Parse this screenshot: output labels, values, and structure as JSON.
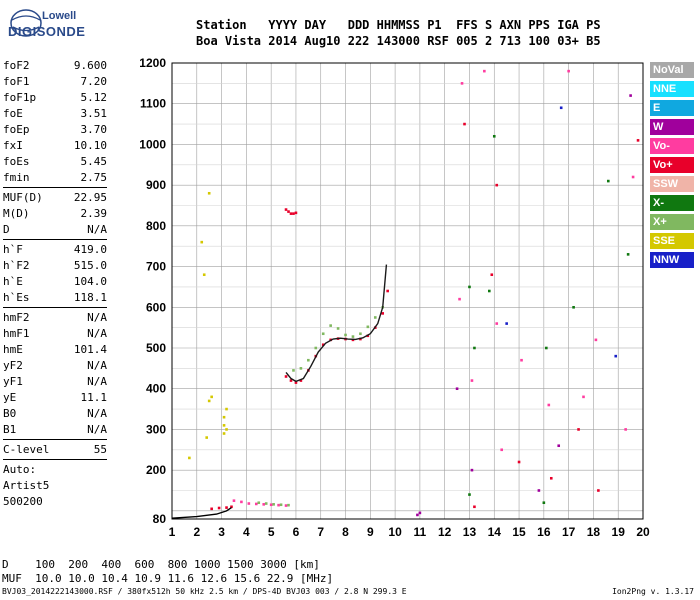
{
  "logo": {
    "line1": "Lowell",
    "line2": "DIGISONDE"
  },
  "header": {
    "row1": "Station   YYYY DAY   DDD HHMMSS P1  FFS S AXN PPS IGA PS",
    "row2": "Boa Vista 2014 Aug10 222 143000 RSF 005 2 713 100 03+ B5"
  },
  "params": {
    "group1": [
      {
        "name": "foF2",
        "value": "9.600"
      },
      {
        "name": "foF1",
        "value": "7.20"
      },
      {
        "name": "foF1p",
        "value": "5.12"
      },
      {
        "name": "foE",
        "value": "3.51"
      },
      {
        "name": "foEp",
        "value": "3.70"
      },
      {
        "name": "fxI",
        "value": "10.10"
      },
      {
        "name": "foEs",
        "value": "5.45"
      },
      {
        "name": "fmin",
        "value": "2.75"
      }
    ],
    "group2": [
      {
        "name": "MUF(D)",
        "value": "22.95"
      },
      {
        "name": "M(D)",
        "value": "2.39"
      },
      {
        "name": "D",
        "value": "N/A"
      }
    ],
    "group3": [
      {
        "name": "h`F",
        "value": "419.0"
      },
      {
        "name": "h`F2",
        "value": "515.0"
      },
      {
        "name": "h`E",
        "value": "104.0"
      },
      {
        "name": "h`Es",
        "value": "118.1"
      }
    ],
    "group4": [
      {
        "name": "hmF2",
        "value": "N/A"
      },
      {
        "name": "hmF1",
        "value": "N/A"
      },
      {
        "name": "hmE",
        "value": "101.4"
      },
      {
        "name": "yF2",
        "value": "N/A"
      },
      {
        "name": "yF1",
        "value": "N/A"
      },
      {
        "name": "yE",
        "value": "11.1"
      },
      {
        "name": "B0",
        "value": "N/A"
      },
      {
        "name": "B1",
        "value": "N/A"
      }
    ],
    "group5": [
      {
        "name": "C-level",
        "value": "55"
      }
    ],
    "auto_lines": [
      "Auto:",
      "Artist5",
      "500200"
    ]
  },
  "legend": [
    {
      "label": "NoVal",
      "color": "#a8a8a8"
    },
    {
      "label": "NNE",
      "color": "#18e0ff"
    },
    {
      "label": "E",
      "color": "#10a8e0"
    },
    {
      "label": "W",
      "color": "#a0009c"
    },
    {
      "label": "Vo-",
      "color": "#ff3ca0"
    },
    {
      "label": "Vo+",
      "color": "#e8002a"
    },
    {
      "label": "SSW",
      "color": "#f0b4a8"
    },
    {
      "label": "X-",
      "color": "#107810"
    },
    {
      "label": "X+",
      "color": "#80b860"
    },
    {
      "label": "SSE",
      "color": "#d4c800"
    },
    {
      "label": "NNW",
      "color": "#1820c8"
    }
  ],
  "footer": {
    "row1": "D    100  200  400  600  800 1000 1500 3000 [km]",
    "row2": "MUF  10.0 10.0 10.4 10.9 11.6 12.6 15.6 22.9 [MHz]",
    "row3": "BVJ03_2014222143000.RSF / 380fx512h 50 kHz 2.5 km / DPS-4D BVJ03 003 / 2.8 N 299.3 E",
    "version": "Ion2Png v. 1.3.17"
  },
  "chart_data": {
    "type": "scatter",
    "xlim": [
      1,
      20
    ],
    "ylim": [
      80,
      1200
    ],
    "x_ticks": [
      1,
      2,
      3,
      4,
      5,
      6,
      7,
      8,
      9,
      10,
      11,
      12,
      13,
      14,
      15,
      16,
      17,
      18,
      19,
      20
    ],
    "y_ticks": [
      80,
      200,
      300,
      400,
      500,
      600,
      700,
      800,
      900,
      1000,
      1100,
      1200
    ],
    "grid": true,
    "series": [
      {
        "color": "#e8002a",
        "points": [
          [
            5.6,
            430
          ],
          [
            5.8,
            420
          ],
          [
            6.0,
            415
          ],
          [
            6.2,
            420
          ],
          [
            6.5,
            445
          ],
          [
            6.8,
            480
          ],
          [
            7.1,
            508
          ],
          [
            7.4,
            520
          ],
          [
            7.7,
            523
          ],
          [
            8.0,
            522
          ],
          [
            8.3,
            520
          ],
          [
            8.6,
            522
          ],
          [
            8.9,
            530
          ],
          [
            9.2,
            550
          ],
          [
            9.5,
            585
          ],
          [
            9.7,
            640
          ]
        ]
      },
      {
        "color": "#80b860",
        "points": [
          [
            5.9,
            445
          ],
          [
            6.2,
            450
          ],
          [
            6.5,
            470
          ],
          [
            6.8,
            500
          ],
          [
            7.1,
            535
          ],
          [
            7.4,
            555
          ],
          [
            7.7,
            548
          ],
          [
            8.0,
            532
          ],
          [
            8.3,
            528
          ],
          [
            8.6,
            535
          ],
          [
            8.9,
            552
          ],
          [
            9.2,
            575
          ],
          [
            9.5,
            600
          ]
        ]
      },
      {
        "color": "#ff3ca0",
        "points": [
          [
            3.5,
            125
          ],
          [
            3.8,
            122
          ],
          [
            4.1,
            118
          ],
          [
            4.4,
            117
          ],
          [
            4.7,
            116
          ],
          [
            5.0,
            115
          ],
          [
            5.3,
            114
          ],
          [
            5.6,
            113
          ]
        ]
      },
      {
        "color": "#80b860",
        "points": [
          [
            4.5,
            120
          ],
          [
            4.8,
            118
          ],
          [
            5.1,
            116
          ],
          [
            5.4,
            115
          ],
          [
            5.7,
            114
          ]
        ]
      },
      {
        "color": "#e8002a",
        "points": [
          [
            2.6,
            105
          ],
          [
            2.9,
            107
          ],
          [
            3.2,
            108
          ],
          [
            3.4,
            110
          ]
        ]
      },
      {
        "color": "#e8002a",
        "points": [
          [
            5.6,
            840
          ],
          [
            5.7,
            835
          ],
          [
            5.8,
            830
          ],
          [
            5.9,
            830
          ],
          [
            6.0,
            832
          ]
        ]
      },
      {
        "color": "#d4c800",
        "points": [
          [
            3.1,
            290
          ],
          [
            3.1,
            310
          ],
          [
            3.1,
            330
          ],
          [
            3.2,
            350
          ],
          [
            3.2,
            300
          ],
          [
            2.5,
            370
          ],
          [
            2.4,
            280
          ],
          [
            2.2,
            760
          ],
          [
            2.3,
            680
          ],
          [
            2.6,
            380
          ],
          [
            2.5,
            880
          ],
          [
            1.7,
            230
          ]
        ]
      },
      {
        "color": "#107810",
        "points": [
          [
            13.0,
            650
          ],
          [
            13.2,
            500
          ],
          [
            13.8,
            640
          ],
          [
            14.0,
            1020
          ],
          [
            16.1,
            500
          ],
          [
            17.2,
            600
          ],
          [
            18.6,
            910
          ],
          [
            19.4,
            730
          ],
          [
            16.0,
            120
          ],
          [
            13.0,
            140
          ]
        ]
      },
      {
        "color": "#ff3ca0",
        "points": [
          [
            12.6,
            620
          ],
          [
            13.1,
            420
          ],
          [
            13.6,
            1180
          ],
          [
            14.1,
            560
          ],
          [
            15.1,
            470
          ],
          [
            16.2,
            360
          ],
          [
            17.0,
            1180
          ],
          [
            18.1,
            520
          ],
          [
            19.3,
            300
          ],
          [
            19.6,
            920
          ],
          [
            12.7,
            1150
          ],
          [
            14.3,
            250
          ],
          [
            17.6,
            380
          ]
        ]
      },
      {
        "color": "#e8002a",
        "points": [
          [
            13.9,
            680
          ],
          [
            16.3,
            180
          ],
          [
            15.0,
            220
          ],
          [
            18.2,
            150
          ],
          [
            12.8,
            1050
          ],
          [
            14.1,
            900
          ],
          [
            17.4,
            300
          ],
          [
            19.8,
            1010
          ],
          [
            13.2,
            110
          ]
        ]
      },
      {
        "color": "#a0009c",
        "points": [
          [
            13.1,
            200
          ],
          [
            15.8,
            150
          ],
          [
            10.9,
            90
          ],
          [
            11.0,
            95
          ],
          [
            12.5,
            400
          ],
          [
            16.6,
            260
          ],
          [
            19.5,
            1120
          ]
        ]
      },
      {
        "color": "#1820c8",
        "points": [
          [
            14.5,
            560
          ],
          [
            16.7,
            1090
          ],
          [
            18.9,
            480
          ]
        ]
      }
    ],
    "trace_line": [
      [
        1.0,
        82
      ],
      [
        2.0,
        86
      ],
      [
        2.8,
        92
      ],
      [
        3.2,
        100
      ],
      [
        3.4,
        108
      ]
    ],
    "profile_line": [
      [
        5.6,
        440
      ],
      [
        5.8,
        425
      ],
      [
        6.0,
        418
      ],
      [
        6.3,
        425
      ],
      [
        6.6,
        455
      ],
      [
        6.9,
        490
      ],
      [
        7.2,
        512
      ],
      [
        7.5,
        522
      ],
      [
        7.8,
        524
      ],
      [
        8.1,
        522
      ],
      [
        8.4,
        521
      ],
      [
        8.7,
        525
      ],
      [
        9.0,
        535
      ],
      [
        9.3,
        560
      ],
      [
        9.5,
        600
      ],
      [
        9.65,
        705
      ]
    ]
  }
}
